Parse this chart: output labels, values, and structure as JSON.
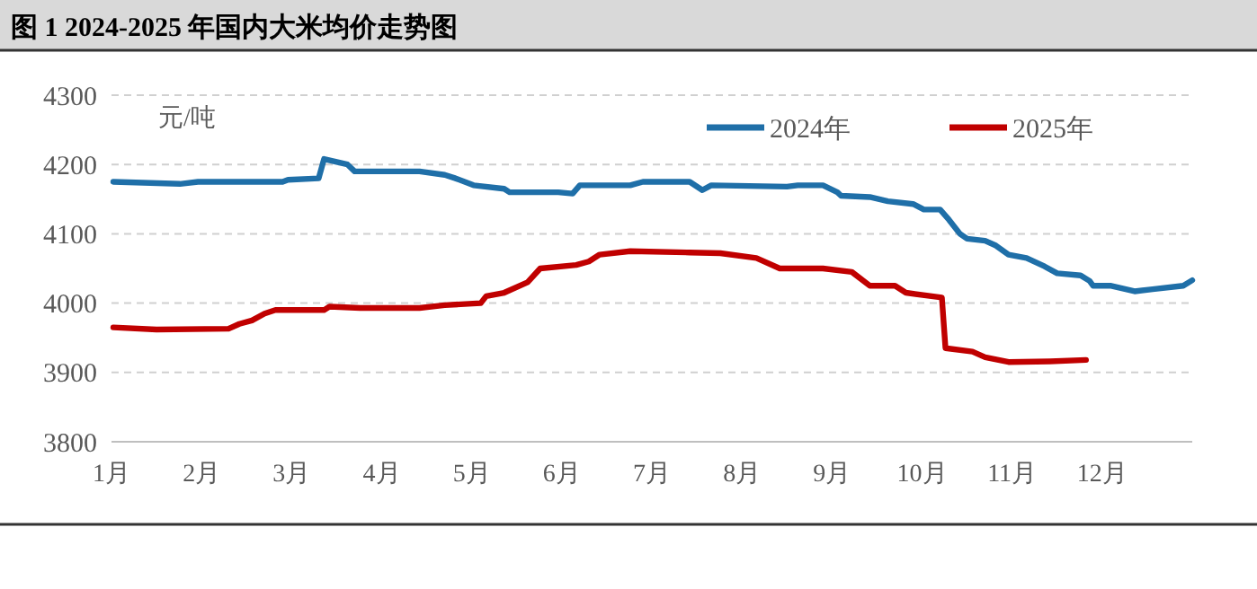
{
  "chart_data": {
    "type": "line",
    "title": "图 1 2024-2025 年国内大米均价走势图",
    "ylabel": "元/吨",
    "xlim": [
      1,
      13
    ],
    "xticks": [
      {
        "value": 1,
        "label": "1月"
      },
      {
        "value": 2,
        "label": "2月"
      },
      {
        "value": 3,
        "label": "3月"
      },
      {
        "value": 4,
        "label": "4月"
      },
      {
        "value": 5,
        "label": "5月"
      },
      {
        "value": 6,
        "label": "6月"
      },
      {
        "value": 7,
        "label": "7月"
      },
      {
        "value": 8,
        "label": "8月"
      },
      {
        "value": 9,
        "label": "9月"
      },
      {
        "value": 10,
        "label": "10月"
      },
      {
        "value": 11,
        "label": "11月"
      },
      {
        "value": 12,
        "label": "12月"
      }
    ],
    "ylim": [
      3800,
      4300
    ],
    "yticks": [
      3800,
      3900,
      4000,
      4100,
      4200,
      4300
    ],
    "grid": "y",
    "legend": "top right",
    "line_style": "solid",
    "marker": "none",
    "series": [
      {
        "name": "2024年",
        "color": "#1f6fa8",
        "x": [
          1.02,
          1.76,
          1.96,
          2.9,
          2.96,
          3.3,
          3.36,
          3.62,
          3.7,
          4.42,
          4.7,
          4.82,
          5.02,
          5.36,
          5.42,
          5.96,
          6.12,
          6.2,
          6.76,
          6.9,
          7.42,
          7.56,
          7.66,
          8.5,
          8.62,
          8.9,
          9.06,
          9.1,
          9.42,
          9.62,
          9.9,
          10.02,
          10.2,
          10.3,
          10.42,
          10.5,
          10.7,
          10.82,
          10.96,
          11.16,
          11.36,
          11.5,
          11.76,
          11.86,
          11.9,
          12.1,
          12.36,
          12.56,
          12.9,
          13
        ],
        "values": [
          4175,
          4172,
          4175,
          4175,
          4178,
          4180,
          4208,
          4200,
          4190,
          4190,
          4185,
          4180,
          4170,
          4165,
          4160,
          4160,
          4158,
          4170,
          4170,
          4175,
          4175,
          4163,
          4170,
          4168,
          4170,
          4170,
          4160,
          4155,
          4153,
          4147,
          4143,
          4135,
          4135,
          4120,
          4100,
          4093,
          4090,
          4083,
          4070,
          4065,
          4053,
          4043,
          4040,
          4032,
          4025,
          4025,
          4017,
          4020,
          4025,
          4033
        ]
      },
      {
        "name": "2025年",
        "color": "#c00000",
        "x": [
          1.02,
          1.5,
          2.3,
          2.42,
          2.56,
          2.7,
          2.82,
          3.36,
          3.42,
          3.76,
          4.42,
          4.7,
          5.1,
          5.16,
          5.36,
          5.62,
          5.76,
          6.16,
          6.3,
          6.42,
          6.76,
          7.42,
          7.76,
          8.16,
          8.42,
          8.9,
          9.22,
          9.42,
          9.7,
          9.82,
          10.22,
          10.26,
          10.56,
          10.7,
          10.96,
          11.42,
          11.82
        ],
        "values": [
          3965,
          3962,
          3963,
          3970,
          3975,
          3985,
          3990,
          3990,
          3995,
          3993,
          3993,
          3997,
          4000,
          4010,
          4015,
          4030,
          4050,
          4055,
          4060,
          4070,
          4075,
          4073,
          4072,
          4065,
          4050,
          4050,
          4045,
          4025,
          4025,
          4015,
          4008,
          3935,
          3930,
          3922,
          3915,
          3916,
          3918
        ]
      }
    ]
  }
}
